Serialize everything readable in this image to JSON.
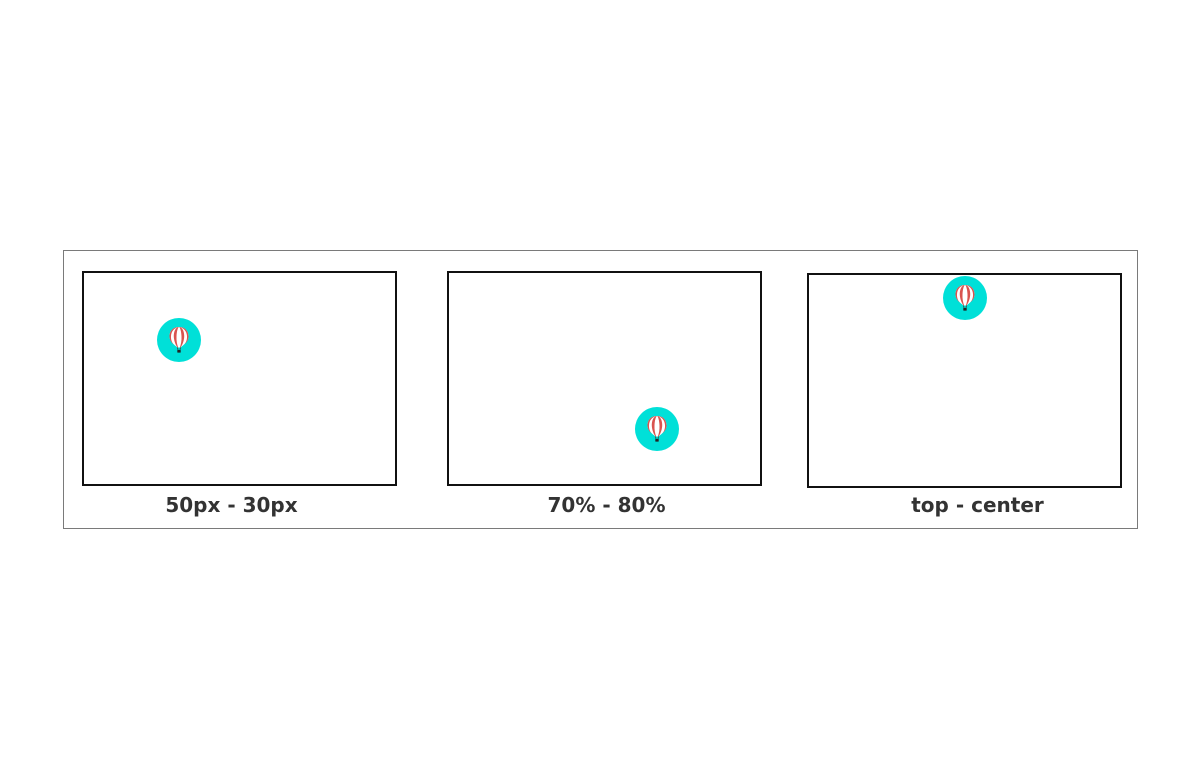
{
  "panels": [
    {
      "caption": "50px - 30px",
      "icon": "hot-air-balloon-icon"
    },
    {
      "caption": "70% - 80%",
      "icon": "hot-air-balloon-icon"
    },
    {
      "caption": "top - center",
      "icon": "hot-air-balloon-icon"
    }
  ],
  "colors": {
    "badge": "#00e0d8",
    "balloon_stripe_red": "#d9534f",
    "balloon_stripe_white": "#ffffff",
    "frame": "#7a7a7a",
    "panel_border": "#111111",
    "caption": "#333333"
  }
}
